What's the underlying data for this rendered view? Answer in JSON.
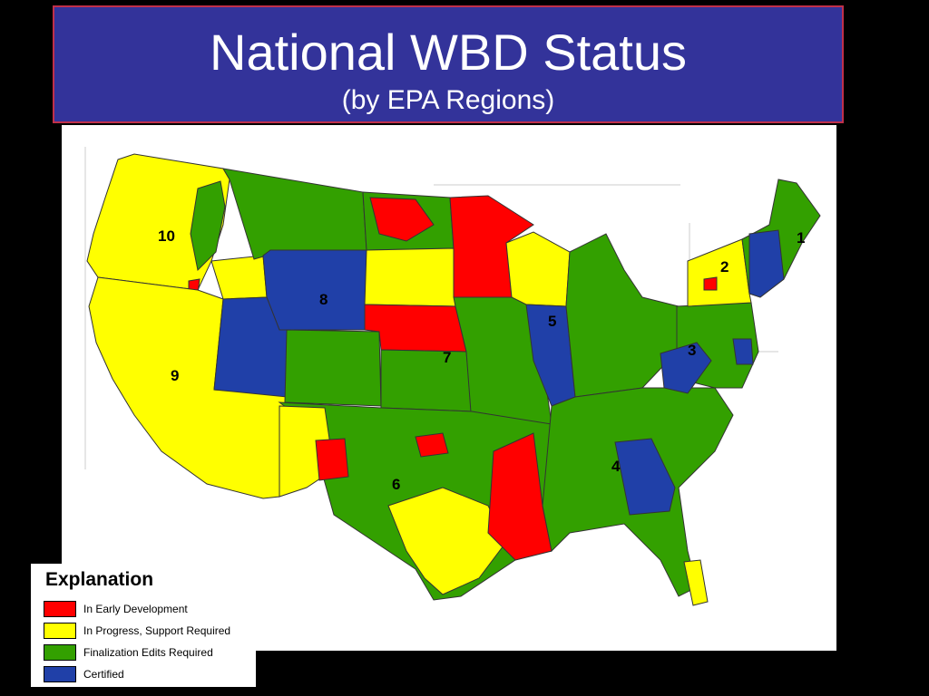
{
  "title": "National WBD Status",
  "subtitle": "(by EPA Regions)",
  "colors": {
    "title_background": "#33339a",
    "title_border": "#c0304a",
    "in_early_development": "#ff0000",
    "in_progress": "#ffff00",
    "finalization": "#33a000",
    "certified": "#2040a8"
  },
  "legend": {
    "title": "Explanation",
    "items": [
      {
        "label": "In Early Development",
        "color": "#ff0000"
      },
      {
        "label": "In Progress, Support Required",
        "color": "#ffff00"
      },
      {
        "label": "Finalization Edits Required",
        "color": "#33a000"
      },
      {
        "label": "Certified",
        "color": "#2040a8"
      }
    ]
  },
  "regions": [
    {
      "label": "1",
      "status": "Finalization Edits Required"
    },
    {
      "label": "2",
      "status": "In Progress, Support Required"
    },
    {
      "label": "3",
      "status": "Finalization Edits Required"
    },
    {
      "label": "4",
      "status": "Finalization Edits Required"
    },
    {
      "label": "5",
      "status": "Finalization Edits Required"
    },
    {
      "label": "6",
      "status": "Finalization Edits Required"
    },
    {
      "label": "7",
      "status": "Finalization Edits Required"
    },
    {
      "label": "8",
      "status": "Certified"
    },
    {
      "label": "9",
      "status": "In Progress, Support Required"
    },
    {
      "label": "10",
      "status": "In Progress, Support Required"
    }
  ]
}
